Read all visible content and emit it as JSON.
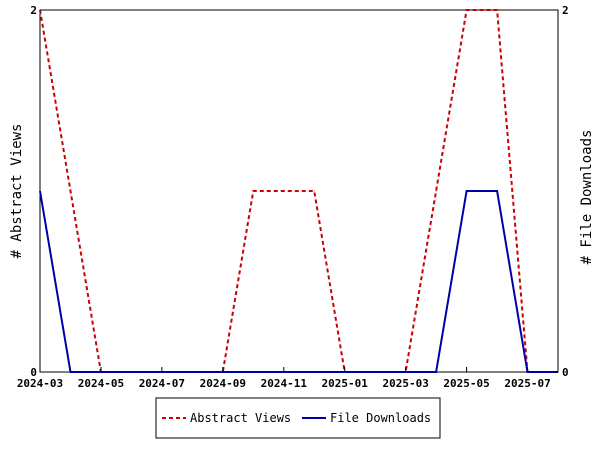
{
  "chart_data": {
    "type": "line",
    "title": "",
    "ylabel_left": "# Abstract Views",
    "ylabel_right": "# File Downloads",
    "x_ticks": [
      "2024-03",
      "2024-05",
      "2024-07",
      "2024-09",
      "2024-11",
      "2025-01",
      "2025-03",
      "2025-05",
      "2025-07"
    ],
    "x_domain": [
      "2024-03",
      "2025-08"
    ],
    "y_ticks_left": [
      "0",
      "2"
    ],
    "y_ticks_right": [
      "0",
      "2"
    ],
    "ylim": [
      0,
      2
    ],
    "grid": false,
    "legend_position": "bottom",
    "series": [
      {
        "name": "Abstract Views",
        "color": "#cc0000",
        "style": "dashed",
        "points": [
          [
            "2024-03",
            2
          ],
          [
            "2024-04",
            1
          ],
          [
            "2024-05",
            0
          ],
          [
            "2024-06",
            0
          ],
          [
            "2024-07",
            0
          ],
          [
            "2024-08",
            0
          ],
          [
            "2024-09",
            0
          ],
          [
            "2024-10",
            1
          ],
          [
            "2024-11",
            1
          ],
          [
            "2024-12",
            1
          ],
          [
            "2025-01",
            0
          ],
          [
            "2025-02",
            0
          ],
          [
            "2025-03",
            0
          ],
          [
            "2025-04",
            1
          ],
          [
            "2025-05",
            2
          ],
          [
            "2025-06",
            2
          ],
          [
            "2025-07",
            0
          ],
          [
            "2025-08",
            0
          ]
        ]
      },
      {
        "name": "File Downloads",
        "color": "#0000aa",
        "style": "solid",
        "points": [
          [
            "2024-03",
            1
          ],
          [
            "2024-04",
            0
          ],
          [
            "2024-05",
            0
          ],
          [
            "2024-06",
            0
          ],
          [
            "2024-07",
            0
          ],
          [
            "2024-08",
            0
          ],
          [
            "2024-09",
            0
          ],
          [
            "2024-10",
            0
          ],
          [
            "2024-11",
            0
          ],
          [
            "2024-12",
            0
          ],
          [
            "2025-01",
            0
          ],
          [
            "2025-02",
            0
          ],
          [
            "2025-03",
            0
          ],
          [
            "2025-04",
            0
          ],
          [
            "2025-05",
            1
          ],
          [
            "2025-06",
            1
          ],
          [
            "2025-07",
            0
          ],
          [
            "2025-08",
            0
          ]
        ]
      }
    ]
  }
}
